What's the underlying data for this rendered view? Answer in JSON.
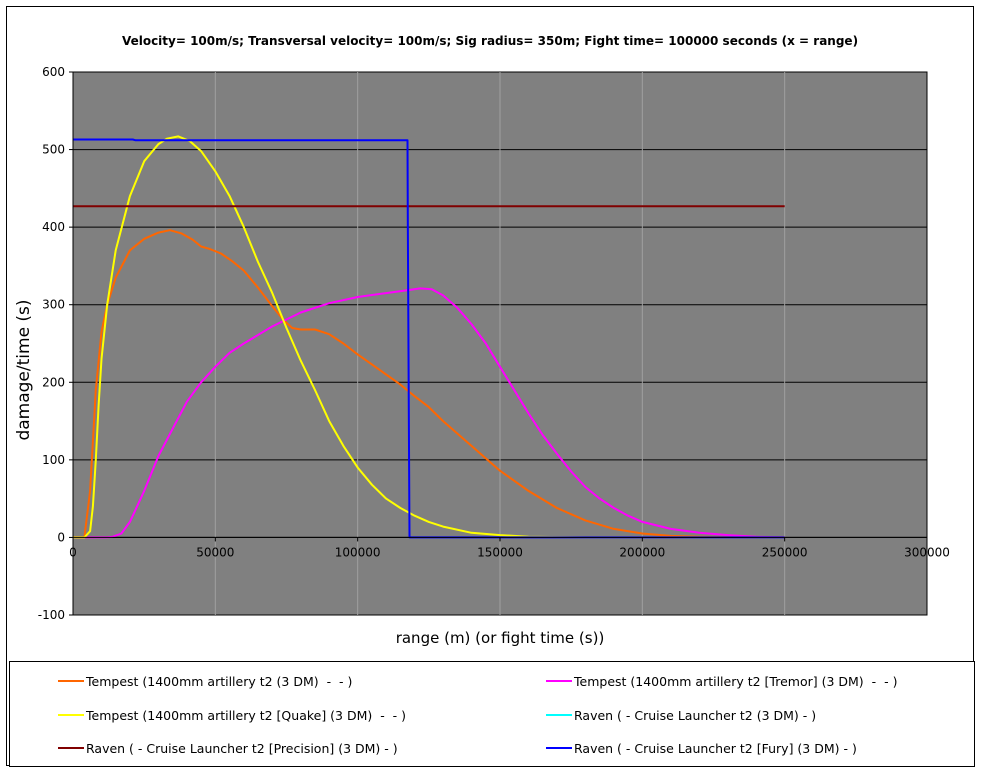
{
  "chart_data": {
    "type": "line",
    "title": "Velocity= 100m/s; Transversal velocity= 100m/s; Sig radius= 350m; Fight time= 100000 seconds (x = range)",
    "xlabel": "range (m) (or fight time (s))",
    "ylabel": "damage/time (s)",
    "xlim": [
      0,
      300000
    ],
    "ylim": [
      -100,
      600
    ],
    "x_ticks": [
      0,
      50000,
      100000,
      150000,
      200000,
      250000,
      300000
    ],
    "y_ticks": [
      -100,
      0,
      100,
      200,
      300,
      400,
      500,
      600
    ],
    "grid": "horizontal and vertical gridlines",
    "plot_background": "#808080",
    "legend_position": "bottom",
    "series": [
      {
        "name": "Tempest (1400mm artillery t2 (3 DM)  -  - )",
        "color": "#ff6600",
        "points": [
          [
            0,
            0
          ],
          [
            4000,
            0
          ],
          [
            6000,
            60
          ],
          [
            8000,
            190
          ],
          [
            10000,
            265
          ],
          [
            12000,
            300
          ],
          [
            15000,
            335
          ],
          [
            20000,
            370
          ],
          [
            25000,
            385
          ],
          [
            30000,
            393
          ],
          [
            34000,
            396
          ],
          [
            38000,
            392
          ],
          [
            42000,
            384
          ],
          [
            45000,
            375
          ],
          [
            48000,
            372
          ],
          [
            52000,
            366
          ],
          [
            56000,
            356
          ],
          [
            60000,
            344
          ],
          [
            65000,
            322
          ],
          [
            70000,
            298
          ],
          [
            74000,
            280
          ],
          [
            77000,
            270
          ],
          [
            80000,
            268
          ],
          [
            85000,
            268
          ],
          [
            90000,
            262
          ],
          [
            95000,
            250
          ],
          [
            100000,
            236
          ],
          [
            105000,
            223
          ],
          [
            110000,
            210
          ],
          [
            115000,
            197
          ],
          [
            120000,
            182
          ],
          [
            125000,
            168
          ],
          [
            130000,
            150
          ],
          [
            140000,
            118
          ],
          [
            150000,
            86
          ],
          [
            160000,
            60
          ],
          [
            170000,
            38
          ],
          [
            180000,
            22
          ],
          [
            190000,
            11
          ],
          [
            200000,
            5
          ],
          [
            210000,
            2
          ],
          [
            220000,
            1
          ],
          [
            235000,
            0
          ],
          [
            250000,
            0
          ]
        ]
      },
      {
        "name": "Tempest (1400mm artillery t2 [Tremor] (3 DM)  -  - )",
        "color": "#ff00ff",
        "points": [
          [
            0,
            0
          ],
          [
            12000,
            0
          ],
          [
            14000,
            1
          ],
          [
            17000,
            5
          ],
          [
            20000,
            20
          ],
          [
            25000,
            60
          ],
          [
            30000,
            105
          ],
          [
            35000,
            140
          ],
          [
            40000,
            175
          ],
          [
            45000,
            200
          ],
          [
            50000,
            220
          ],
          [
            55000,
            238
          ],
          [
            60000,
            250
          ],
          [
            70000,
            272
          ],
          [
            80000,
            290
          ],
          [
            90000,
            302
          ],
          [
            100000,
            310
          ],
          [
            110000,
            315
          ],
          [
            118000,
            319
          ],
          [
            122000,
            321
          ],
          [
            126000,
            320
          ],
          [
            130000,
            312
          ],
          [
            135000,
            296
          ],
          [
            140000,
            275
          ],
          [
            145000,
            250
          ],
          [
            150000,
            220
          ],
          [
            155000,
            190
          ],
          [
            160000,
            160
          ],
          [
            165000,
            132
          ],
          [
            170000,
            108
          ],
          [
            175000,
            85
          ],
          [
            180000,
            65
          ],
          [
            185000,
            50
          ],
          [
            190000,
            38
          ],
          [
            195000,
            28
          ],
          [
            200000,
            20
          ],
          [
            210000,
            11
          ],
          [
            220000,
            6
          ],
          [
            230000,
            3
          ],
          [
            240000,
            1
          ],
          [
            250000,
            0
          ]
        ]
      },
      {
        "name": "Tempest (1400mm artillery t2 [Quake] (3 DM)  -  - )",
        "color": "#ffff00",
        "points": [
          [
            0,
            0
          ],
          [
            4000,
            0
          ],
          [
            6000,
            8
          ],
          [
            7000,
            40
          ],
          [
            8000,
            100
          ],
          [
            9000,
            170
          ],
          [
            10000,
            230
          ],
          [
            12000,
            300
          ],
          [
            15000,
            370
          ],
          [
            20000,
            440
          ],
          [
            25000,
            485
          ],
          [
            30000,
            507
          ],
          [
            33000,
            514
          ],
          [
            37000,
            517
          ],
          [
            41000,
            511
          ],
          [
            45000,
            498
          ],
          [
            50000,
            472
          ],
          [
            55000,
            440
          ],
          [
            60000,
            400
          ],
          [
            65000,
            355
          ],
          [
            70000,
            315
          ],
          [
            75000,
            270
          ],
          [
            80000,
            228
          ],
          [
            85000,
            190
          ],
          [
            90000,
            150
          ],
          [
            95000,
            118
          ],
          [
            100000,
            90
          ],
          [
            105000,
            68
          ],
          [
            110000,
            50
          ],
          [
            115000,
            38
          ],
          [
            120000,
            28
          ],
          [
            125000,
            20
          ],
          [
            130000,
            14
          ],
          [
            140000,
            6
          ],
          [
            150000,
            3
          ],
          [
            160000,
            1
          ],
          [
            180000,
            0
          ],
          [
            250000,
            0
          ]
        ]
      },
      {
        "name": "Raven ( - Cruise Launcher t2 (3 DM) - )",
        "color": "#00ffff",
        "points": []
      },
      {
        "name": "Raven ( - Cruise Launcher t2 [Precision] (3 DM) - )",
        "color": "#800000",
        "points": [
          [
            0,
            427
          ],
          [
            250000,
            427
          ]
        ]
      },
      {
        "name": "Raven ( - Cruise Launcher t2 [Fury] (3 DM) - )",
        "color": "#0000ff",
        "points": [
          [
            0,
            513
          ],
          [
            21000,
            513
          ],
          [
            22000,
            512
          ],
          [
            117500,
            512
          ],
          [
            117600,
            410
          ],
          [
            118000,
            140
          ],
          [
            118200,
            0
          ],
          [
            250000,
            0
          ]
        ]
      }
    ]
  }
}
